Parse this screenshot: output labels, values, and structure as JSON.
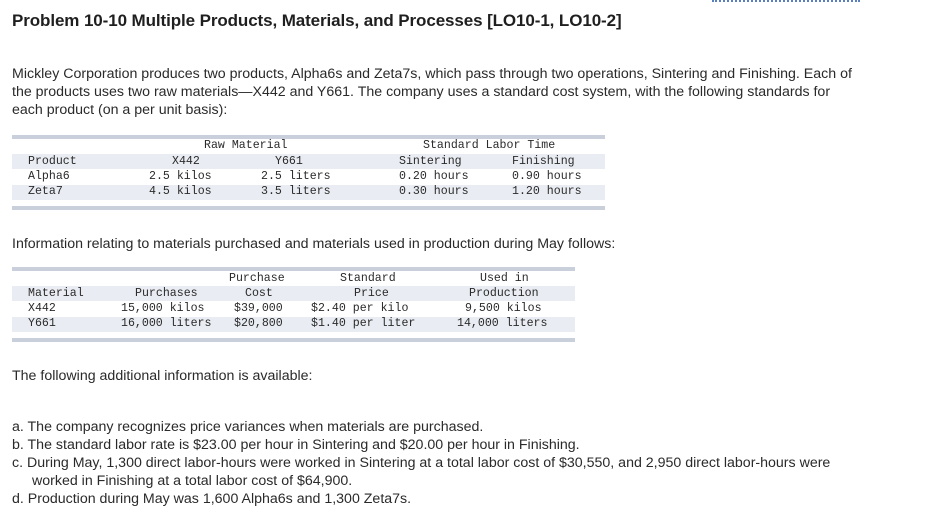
{
  "title": "Problem 10-10 Multiple Products, Materials, and Processes [LO10-1, LO10-2]",
  "intro": "Mickley Corporation produces two products, Alpha6s and Zeta7s, which pass through two operations, Sintering and Finishing. Each of the products uses two raw materials—X442 and Y661. The company uses a standard cost system, with the following standards for each product (on a per unit basis):",
  "standards_table": {
    "group_raw_material": "Raw Material",
    "group_labor": "Standard Labor Time",
    "headers": [
      "Product",
      "X442",
      "Y661",
      "Sintering",
      "Finishing"
    ],
    "rows": [
      [
        "Alpha6",
        "2.5 kilos",
        "2.5 liters",
        "0.20 hours",
        "0.90 hours"
      ],
      [
        "Zeta7",
        "4.5 kilos",
        "3.5 liters",
        "0.30 hours",
        "1.20 hours"
      ]
    ]
  },
  "materials_intro": "Information relating to materials purchased and materials used in production during May follows:",
  "materials_table": {
    "headers_top": [
      "",
      "",
      "Purchase",
      "Standard",
      "Used in"
    ],
    "headers_bottom": [
      "Material",
      "Purchases",
      "Cost",
      "Price",
      "Production"
    ],
    "rows": [
      [
        "X442",
        "15,000 kilos",
        "$39,000",
        "$2.40 per kilo",
        "9,500 kilos"
      ],
      [
        "Y661",
        "16,000 liters",
        "$20,800",
        "$1.40 per liter",
        "14,000 liters"
      ]
    ]
  },
  "additional_intro": "The following additional information is available:",
  "items": [
    "a. The company recognizes price variances when materials are purchased.",
    "b. The standard labor rate is $23.00 per hour in Sintering and $20.00 per hour in Finishing.",
    "c. During May, 1,300 direct labor-hours were worked in Sintering at a total labor cost of $30,550, and 2,950 direct labor-hours were worked in Finishing at a total labor cost of $64,900.",
    "d. Production during May was 1,600 Alpha6s and 1,300 Zeta7s."
  ]
}
